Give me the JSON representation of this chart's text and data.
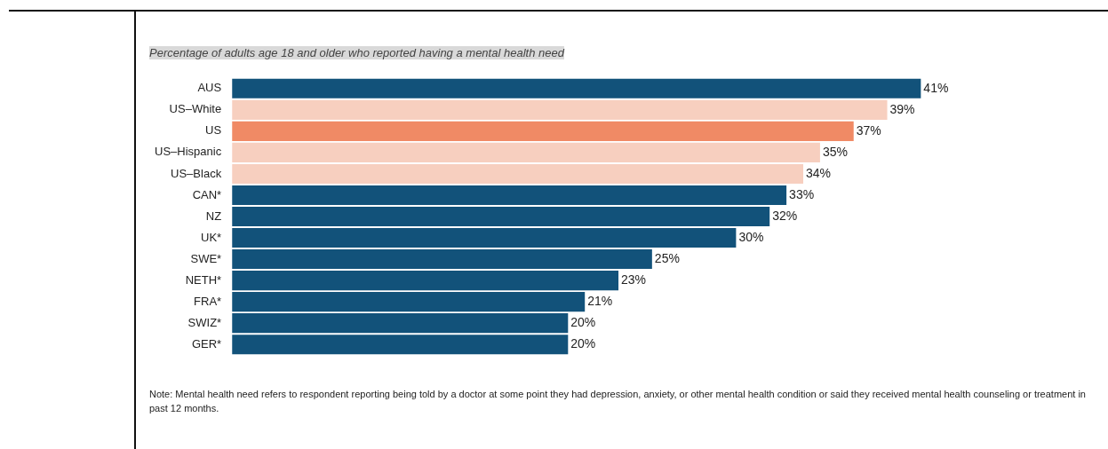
{
  "chart_data": {
    "type": "bar",
    "orientation": "horizontal",
    "title": "Percentage of adults age 18 and older who reported having a mental health need",
    "categories": [
      "AUS",
      "US–White",
      "US",
      "US–Hispanic",
      "US–Black",
      "CAN*",
      "NZ",
      "UK*",
      "SWE*",
      "NETH*",
      "FRA*",
      "SWIZ*",
      "GER*"
    ],
    "values": [
      41,
      39,
      37,
      35,
      34,
      33,
      32,
      30,
      25,
      23,
      21,
      20,
      20
    ],
    "colors": [
      "#12527a",
      "#f7cfbf",
      "#f08a65",
      "#f7cfbf",
      "#f7cfbf",
      "#12527a",
      "#12527a",
      "#12527a",
      "#12527a",
      "#12527a",
      "#12527a",
      "#12527a",
      "#12527a"
    ],
    "value_labels": [
      "41%",
      "39%",
      "37%",
      "35%",
      "34%",
      "33%",
      "32%",
      "30%",
      "25%",
      "23%",
      "21%",
      "20%",
      "20%"
    ],
    "annotations": [
      "Note: Mental health need refers to respondent reporting being told by a doctor at some point they had depression, anxiety, or other mental health condition or said they received mental health counseling or treatment in past 12 months."
    ]
  }
}
